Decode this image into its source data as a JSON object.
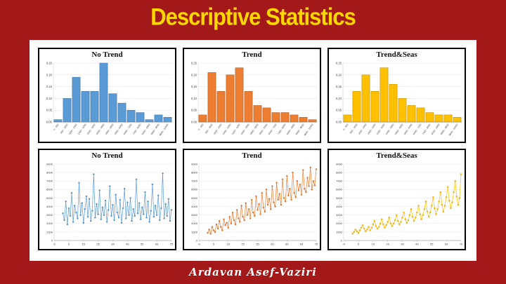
{
  "slide": {
    "title": "Descriptive Statistics",
    "title_color": "#FFD700",
    "background_color": "#A31919"
  },
  "footer": {
    "author": "Ardavan Asef-Vaziri"
  },
  "chart_data": [
    {
      "type": "bar",
      "title": "No Trend",
      "categories": [
        "0 - 800",
        "800 - 1600",
        "1600 - 2400",
        "2400 - 3200",
        "3200 - 4000",
        "4000 - 4800",
        "4800 - 5600",
        "5600 - 6400",
        "6400 - 7200",
        "7200 - 8000",
        "8000 - 8800",
        "8800 - 9600",
        "9600 - 10400"
      ],
      "values": [
        0.01,
        0.1,
        0.19,
        0.13,
        0.13,
        0.25,
        0.12,
        0.08,
        0.05,
        0.04,
        0.01,
        0.03,
        0.02
      ],
      "ylim": [
        0,
        0.25
      ],
      "ytick_step": 0.05,
      "grid": true,
      "color": "#5B9BD5",
      "stroke": "#41719C"
    },
    {
      "type": "bar",
      "title": "Trend",
      "categories": [
        "0 - 800",
        "800 - 1600",
        "1600 - 2400",
        "2400 - 3200",
        "3200 - 4000",
        "4000 - 4800",
        "4800 - 5600",
        "5600 - 6400",
        "6400 - 7200",
        "7200 - 8000",
        "8000 - 8800",
        "8800 - 9600",
        "9600 - 10400"
      ],
      "values": [
        0.03,
        0.21,
        0.13,
        0.2,
        0.23,
        0.13,
        0.07,
        0.06,
        0.04,
        0.04,
        0.03,
        0.02,
        0.01
      ],
      "ylim": [
        0,
        0.25
      ],
      "ytick_step": 0.05,
      "grid": true,
      "color": "#ED7D31",
      "stroke": "#AE5A21"
    },
    {
      "type": "bar",
      "title": "Trend&Seas",
      "categories": [
        "0 - 800",
        "800 - 1600",
        "1600 - 2400",
        "2400 - 3200",
        "3200 - 4000",
        "4000 - 4800",
        "4800 - 5600",
        "5600 - 6400",
        "6400 - 7200",
        "7200 - 8000",
        "8000 - 8800",
        "8800 - 9600",
        "9600 - 10400"
      ],
      "values": [
        0.03,
        0.13,
        0.2,
        0.13,
        0.23,
        0.16,
        0.1,
        0.07,
        0.06,
        0.04,
        0.03,
        0.03,
        0.02
      ],
      "ylim": [
        0,
        0.25
      ],
      "ytick_step": 0.05,
      "grid": true,
      "color": "#FFC000",
      "stroke": "#BF8F00"
    },
    {
      "type": "line",
      "title": "No Trend",
      "x_start": 1,
      "xlim": [
        -5,
        75
      ],
      "xticks": [
        -5,
        5,
        15,
        25,
        35,
        45,
        55,
        65,
        75
      ],
      "ylim": [
        0,
        9000
      ],
      "ytick_step": 1000,
      "grid": true,
      "color": "#5B9BD5",
      "stroke": "#41719C",
      "values": [
        3200,
        2400,
        4600,
        1900,
        3800,
        2900,
        5600,
        2200,
        4100,
        3300,
        2600,
        6800,
        3000,
        4400,
        2100,
        3700,
        5200,
        2800,
        4900,
        2300,
        3500,
        7800,
        2700,
        4300,
        3100,
        5900,
        2500,
        3900,
        3000,
        4700,
        2200,
        3600,
        6400,
        2900,
        4200,
        2400,
        5400,
        3300,
        2700,
        4800,
        2100,
        3800,
        6100,
        2600,
        4500,
        3000,
        5000,
        2300,
        3700,
        2900,
        7200,
        3200,
        4400,
        2500,
        3900,
        3100,
        5700,
        2700,
        4600,
        2200,
        3500,
        6600,
        2800,
        4100,
        3000,
        5300,
        2400,
        3800,
        7900,
        2600,
        4300,
        2900,
        4900,
        2300,
        3600
      ]
    },
    {
      "type": "line",
      "title": "Trend",
      "x_start": 1,
      "xlim": [
        -5,
        75
      ],
      "xticks": [
        -5,
        5,
        15,
        25,
        35,
        45,
        55,
        65,
        75
      ],
      "ylim": [
        0,
        9000
      ],
      "ytick_step": 1000,
      "grid": true,
      "color": "#ED7D31",
      "stroke": "#AE5A21",
      "values": [
        900,
        1300,
        800,
        1600,
        1200,
        1000,
        1900,
        1400,
        2300,
        1600,
        1200,
        2500,
        1800,
        2100,
        1500,
        2800,
        2000,
        3300,
        2400,
        1900,
        3600,
        2600,
        2200,
        4100,
        2800,
        2400,
        4400,
        3000,
        3700,
        2600,
        4800,
        3300,
        2900,
        5200,
        3600,
        4300,
        3100,
        5600,
        3900,
        3400,
        6000,
        4200,
        4900,
        3700,
        6400,
        4500,
        4000,
        6800,
        4800,
        5500,
        4200,
        7200,
        5000,
        4600,
        7600,
        5300,
        6100,
        4800,
        8000,
        5600,
        5100,
        7000,
        5900,
        6600,
        5400,
        8300,
        6100,
        5700,
        7400,
        6400,
        8600,
        6000,
        7000,
        6500,
        8400
      ]
    },
    {
      "type": "line",
      "title": "Trend&Seas",
      "x_start": 1,
      "xlim": [
        -5,
        75
      ],
      "xticks": [
        -5,
        5,
        15,
        25,
        35,
        45,
        55,
        65,
        75
      ],
      "ylim": [
        0,
        9000
      ],
      "ytick_step": 1000,
      "grid": true,
      "color": "#FFC000",
      "stroke": "#BF8F00",
      "values": [
        800,
        1000,
        1300,
        1100,
        900,
        1200,
        1500,
        1800,
        1400,
        1100,
        1300,
        1600,
        1200,
        1500,
        1900,
        2300,
        1700,
        1400,
        1600,
        2000,
        2500,
        1900,
        1500,
        1800,
        2200,
        2700,
        2000,
        1700,
        2000,
        2400,
        3000,
        2300,
        1900,
        2200,
        2700,
        3300,
        2500,
        2100,
        2400,
        3000,
        3700,
        2800,
        2300,
        2700,
        3300,
        4100,
        3100,
        2500,
        3000,
        3700,
        4600,
        3400,
        2800,
        3300,
        4100,
        5100,
        3800,
        3100,
        3700,
        4600,
        5700,
        4200,
        3400,
        4100,
        5100,
        6300,
        4700,
        3800,
        4500,
        5700,
        7000,
        5200,
        4200,
        5000,
        7800
      ]
    }
  ]
}
